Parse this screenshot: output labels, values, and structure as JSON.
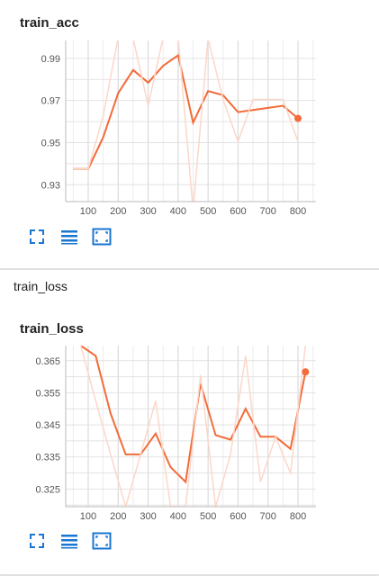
{
  "colors": {
    "line": "#f26b3a",
    "raw_line": "#fcd7c9",
    "grid": "#dddddd",
    "icon": "#1976d2"
  },
  "icons": [
    "fullscreen-icon",
    "list-icon",
    "fit-domain-icon"
  ],
  "section": {
    "title": "train_loss"
  },
  "chart_data": [
    {
      "type": "line",
      "title": "train_acc",
      "xlabel": "",
      "ylabel": "",
      "xlim": [
        25,
        860
      ],
      "ylim": [
        0.922,
        0.9985
      ],
      "x_ticks": [
        100,
        200,
        300,
        400,
        500,
        600,
        700,
        800
      ],
      "x_tick_labels": [
        "100",
        "200",
        "300",
        "400",
        "500",
        "600",
        "700",
        "800"
      ],
      "y_ticks": [
        0.93,
        0.95,
        0.97,
        0.99
      ],
      "y_tick_labels": [
        "0.93",
        "0.95",
        "0.97",
        "0.99"
      ],
      "grid": true,
      "series": [
        {
          "role": "smoothed",
          "x": [
            50,
            100,
            150,
            200,
            250,
            300,
            350,
            400,
            450,
            500,
            550,
            600,
            650,
            700,
            750,
            800
          ],
          "y": [
            0.9375,
            0.9375,
            0.9525,
            0.9735,
            0.9845,
            0.9785,
            0.9865,
            0.9915,
            0.9595,
            0.9745,
            0.9725,
            0.9645,
            0.9655,
            0.9665,
            0.9675,
            0.9615
          ]
        },
        {
          "role": "raw",
          "x": [
            50,
            100,
            150,
            200,
            250,
            300,
            350,
            400,
            450,
            500,
            550,
            600,
            650,
            700,
            750,
            800
          ],
          "y": [
            0.9375,
            0.9375,
            0.9625,
            1.0,
            0.9995,
            0.9675,
            1.0,
            1.0,
            0.918,
            0.9995,
            0.9705,
            0.9505,
            0.9705,
            0.9705,
            0.9705,
            0.9505
          ]
        }
      ],
      "last_point": {
        "x": 800,
        "y": 0.9615
      }
    },
    {
      "type": "line",
      "title": "train_loss",
      "xlabel": "",
      "ylabel": "",
      "xlim": [
        25,
        860
      ],
      "ylim": [
        0.3195,
        0.3697
      ],
      "x_ticks": [
        100,
        200,
        300,
        400,
        500,
        600,
        700,
        800
      ],
      "x_tick_labels": [
        "100",
        "200",
        "300",
        "400",
        "500",
        "600",
        "700",
        "800"
      ],
      "y_ticks": [
        0.325,
        0.335,
        0.345,
        0.355,
        0.365
      ],
      "y_tick_labels": [
        "0.325",
        "0.335",
        "0.345",
        "0.355",
        "0.365"
      ],
      "grid": true,
      "series": [
        {
          "role": "smoothed",
          "x": [
            75,
            125,
            175,
            225,
            275,
            325,
            375,
            425,
            475,
            525,
            575,
            625,
            675,
            725,
            775,
            825
          ],
          "y": [
            0.3697,
            0.3665,
            0.3485,
            0.3358,
            0.3358,
            0.3423,
            0.3318,
            0.3272,
            0.3578,
            0.3418,
            0.3404,
            0.35,
            0.3413,
            0.3413,
            0.3375,
            0.3615
          ]
        },
        {
          "role": "raw",
          "x": [
            75,
            125,
            175,
            225,
            275,
            325,
            375,
            425,
            475,
            525,
            575,
            625,
            675,
            725,
            775,
            825
          ],
          "y": [
            0.3697,
            0.3525,
            0.3358,
            0.3195,
            0.3358,
            0.3525,
            0.3195,
            0.3195,
            0.3605,
            0.3195,
            0.3358,
            0.3665,
            0.3272,
            0.3413,
            0.33,
            0.3697
          ]
        }
      ],
      "last_point": {
        "x": 825,
        "y": 0.3615
      }
    }
  ]
}
